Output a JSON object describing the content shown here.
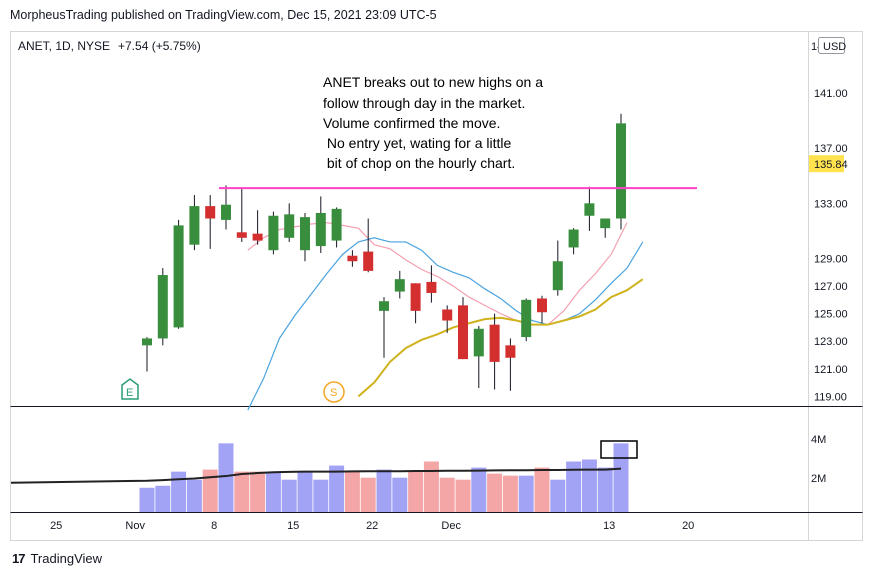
{
  "header": {
    "published_by": "MorpheusTrading published on TradingView.com, Dec 15, 2021 23:09 UTC-5"
  },
  "chart_header": {
    "symbol": "ANET, 1D, NYSE",
    "change": "+7.54 (+5.75%)"
  },
  "axis": {
    "currency": "USD",
    "top_price_partial": "14",
    "last_price": "135.84",
    "volume_ticks": [
      "4M",
      "2M"
    ]
  },
  "annotation": {
    "lines": [
      "ANET breaks out to new highs on a",
      "follow through day in the market.",
      "Volume confirmed the move.",
      " No entry yet, wating for a little",
      " bit of chop on the hourly chart."
    ]
  },
  "markers": {
    "earnings": "E",
    "split": "S"
  },
  "footer": {
    "brand": "TradingView"
  },
  "colors": {
    "up": "#388e3c",
    "down": "#d32f2f",
    "vol_up": "#a3a3f5",
    "vol_down": "#f4a5a5",
    "ema_fast": "#f4a0b0",
    "ema_mid": "#4aa3df",
    "ema_slow": "#cfb21c",
    "breakout_line": "#ff40c8",
    "volume_avg": "#222222"
  },
  "chart_data": {
    "type": "candlestick",
    "title": "",
    "xlabel": "",
    "ylabel": "",
    "ylim": [
      118.3,
      145.5
    ],
    "volume_ylim": [
      0,
      5.2
    ],
    "y_ticks": [
      141.0,
      137.0,
      133.0,
      129.0,
      127.0,
      125.0,
      123.0,
      121.0,
      119.0
    ],
    "x_ticks": [
      {
        "label": "25",
        "index": -6
      },
      {
        "label": "Nov",
        "index": -1
      },
      {
        "label": "8",
        "index": 4
      },
      {
        "label": "15",
        "index": 9
      },
      {
        "label": "22",
        "index": 14
      },
      {
        "label": "Dec",
        "index": 19
      },
      {
        "label": "13",
        "index": 29
      },
      {
        "label": "20",
        "index": 34
      }
    ],
    "breakout_level": 134.1,
    "candles": [
      {
        "o": 122.7,
        "h": 123.3,
        "l": 120.8,
        "c": 123.2
      },
      {
        "o": 123.2,
        "h": 128.3,
        "l": 122.7,
        "c": 127.8
      },
      {
        "o": 124.0,
        "h": 131.8,
        "l": 123.9,
        "c": 131.4
      },
      {
        "o": 130.0,
        "h": 133.6,
        "l": 129.6,
        "c": 132.8
      },
      {
        "o": 132.8,
        "h": 133.6,
        "l": 129.7,
        "c": 131.9
      },
      {
        "o": 131.8,
        "h": 134.3,
        "l": 131.1,
        "c": 132.9
      },
      {
        "o": 130.9,
        "h": 134.1,
        "l": 130.2,
        "c": 130.5
      },
      {
        "o": 130.8,
        "h": 132.5,
        "l": 130.0,
        "c": 130.3
      },
      {
        "o": 129.6,
        "h": 132.4,
        "l": 129.3,
        "c": 132.1
      },
      {
        "o": 130.5,
        "h": 133.0,
        "l": 130.2,
        "c": 132.2
      },
      {
        "o": 129.6,
        "h": 132.3,
        "l": 128.8,
        "c": 132.0
      },
      {
        "o": 129.9,
        "h": 133.5,
        "l": 129.4,
        "c": 132.3
      },
      {
        "o": 130.3,
        "h": 132.7,
        "l": 129.8,
        "c": 132.6
      },
      {
        "o": 129.2,
        "h": 129.6,
        "l": 128.4,
        "c": 128.8
      },
      {
        "o": 129.5,
        "h": 131.9,
        "l": 128.0,
        "c": 128.1
      },
      {
        "o": 125.2,
        "h": 126.2,
        "l": 121.8,
        "c": 125.9
      },
      {
        "o": 126.6,
        "h": 128.1,
        "l": 126.1,
        "c": 127.5
      },
      {
        "o": 127.2,
        "h": 127.2,
        "l": 124.3,
        "c": 125.2
      },
      {
        "o": 127.3,
        "h": 128.5,
        "l": 125.8,
        "c": 126.5
      },
      {
        "o": 125.3,
        "h": 125.6,
        "l": 123.6,
        "c": 124.5
      },
      {
        "o": 125.6,
        "h": 126.2,
        "l": 121.7,
        "c": 121.7
      },
      {
        "o": 121.9,
        "h": 124.1,
        "l": 119.6,
        "c": 123.9
      },
      {
        "o": 124.2,
        "h": 125.0,
        "l": 119.5,
        "c": 121.5
      },
      {
        "o": 122.7,
        "h": 123.2,
        "l": 119.4,
        "c": 121.8
      },
      {
        "o": 123.3,
        "h": 126.1,
        "l": 123.0,
        "c": 126.0
      },
      {
        "o": 126.1,
        "h": 126.3,
        "l": 124.3,
        "c": 125.1
      },
      {
        "o": 126.7,
        "h": 130.3,
        "l": 126.3,
        "c": 128.8
      },
      {
        "o": 129.8,
        "h": 131.2,
        "l": 129.3,
        "c": 131.1
      },
      {
        "o": 132.1,
        "h": 134.2,
        "l": 131.0,
        "c": 133.0
      },
      {
        "o": 131.2,
        "h": 131.7,
        "l": 130.5,
        "c": 131.9
      },
      {
        "o": 131.9,
        "h": 139.5,
        "l": 131.1,
        "c": 138.8
      }
    ],
    "volume_M": [
      1.2,
      1.3,
      2.0,
      1.6,
      2.1,
      3.4,
      2.0,
      2.0,
      2.0,
      1.6,
      2.0,
      1.6,
      2.3,
      2.0,
      1.7,
      2.1,
      1.7,
      2.0,
      2.5,
      1.7,
      1.6,
      2.2,
      1.9,
      1.8,
      1.8,
      2.2,
      1.6,
      2.5,
      2.6,
      2.2,
      3.4
    ],
    "volume_avg_M": [
      1.55,
      1.58,
      1.62,
      1.66,
      1.72,
      1.78,
      1.88,
      1.93,
      1.97,
      1.99,
      2.0,
      2.0,
      2.0,
      2.01,
      2.02,
      2.02,
      2.02,
      2.03,
      2.03,
      2.04,
      2.04,
      2.05,
      2.06,
      2.07,
      2.07,
      2.08,
      2.08,
      2.09,
      2.1,
      2.1,
      2.15
    ],
    "ema_fast": [
      null,
      null,
      null,
      null,
      null,
      null,
      null,
      129.6,
      130.5,
      131.1,
      131.3,
      131.5,
      131.6,
      131.4,
      131.2,
      130.0,
      129.7,
      128.9,
      128.2,
      127.7,
      127.0,
      126.2,
      125.6,
      125.0,
      124.5,
      124.2,
      124.2,
      125.2,
      126.7,
      127.9,
      129.3,
      131.6
    ],
    "ema_mid": [
      null,
      null,
      null,
      null,
      null,
      null,
      null,
      118.0,
      120.3,
      123.2,
      124.9,
      126.4,
      127.9,
      129.3,
      130.2,
      130.5,
      130.2,
      130.2,
      129.6,
      128.5,
      128.0,
      127.6,
      126.8,
      126.1,
      125.2,
      124.5,
      124.2,
      124.5,
      125.0,
      126.0,
      127.2,
      128.3,
      130.2
    ],
    "ema_slow": [
      null,
      null,
      null,
      null,
      null,
      null,
      null,
      null,
      null,
      null,
      null,
      null,
      null,
      null,
      119.0,
      120.0,
      121.5,
      122.5,
      123.1,
      123.5,
      124.0,
      124.3,
      124.6,
      124.7,
      124.5,
      124.2,
      124.2,
      124.5,
      124.8,
      125.3,
      126.2,
      126.7,
      127.5
    ],
    "earnings_index": 0,
    "split_index": 13
  }
}
